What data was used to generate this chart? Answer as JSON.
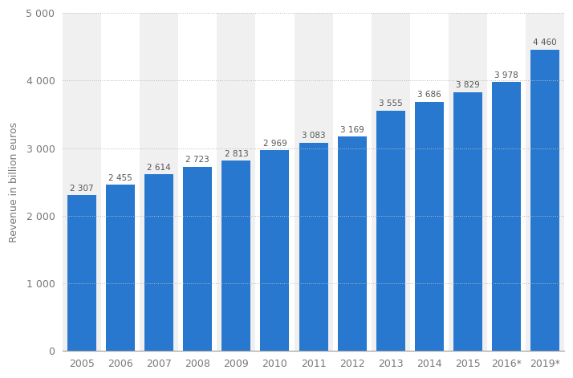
{
  "categories": [
    "2005",
    "2006",
    "2007",
    "2008",
    "2009",
    "2010",
    "2011",
    "2012",
    "2013",
    "2014",
    "2015",
    "2016*",
    "2019*"
  ],
  "values": [
    2307,
    2455,
    2614,
    2723,
    2813,
    2969,
    3083,
    3169,
    3555,
    3686,
    3829,
    3978,
    4460
  ],
  "bar_color": "#2878d0",
  "ylabel": "Revenue in billion euros",
  "ylim": [
    0,
    5000
  ],
  "yticks": [
    0,
    1000,
    2000,
    3000,
    4000,
    5000
  ],
  "background_color": "#ffffff",
  "plot_bg_color": "#ffffff",
  "col_bg_light": "#ffffff",
  "col_bg_dark": "#f0f0f0",
  "grid_color": "#bbbbbb",
  "label_color": "#777777",
  "value_label_color": "#555555",
  "bar_width": 0.75,
  "value_labels": [
    "2 307",
    "2 455",
    "2 614",
    "2 723",
    "2 813",
    "2 969",
    "3 083",
    "3 169",
    "3 555",
    "3 686",
    "3 829",
    "3 978",
    "4 460"
  ],
  "ytick_labels": [
    "0",
    "1 000",
    "2 000",
    "3 000",
    "4 000",
    "5 000"
  ]
}
